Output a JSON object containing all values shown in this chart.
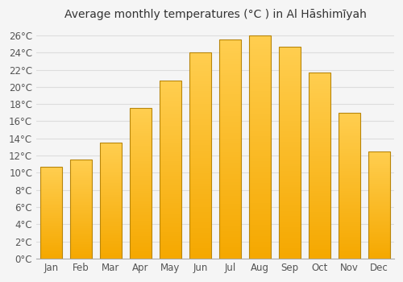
{
  "title": "Average monthly temperatures (°C ) in Al Hāshimīyah",
  "months": [
    "Jan",
    "Feb",
    "Mar",
    "Apr",
    "May",
    "Jun",
    "Jul",
    "Aug",
    "Sep",
    "Oct",
    "Nov",
    "Dec"
  ],
  "values": [
    10.7,
    11.5,
    13.5,
    17.5,
    20.7,
    24.0,
    25.5,
    26.0,
    24.7,
    21.7,
    17.0,
    12.5
  ],
  "bar_color_bottom": "#F5A800",
  "bar_color_top": "#FFCE50",
  "bar_edge_color": "#B8860B",
  "ylim": [
    0,
    27
  ],
  "ytick_max": 26,
  "ytick_step": 2,
  "background_color": "#f5f5f5",
  "plot_bg_color": "#f5f5f5",
  "grid_color": "#dddddd",
  "title_fontsize": 10,
  "tick_fontsize": 8.5,
  "figsize": [
    5.0,
    3.5
  ],
  "dpi": 100
}
